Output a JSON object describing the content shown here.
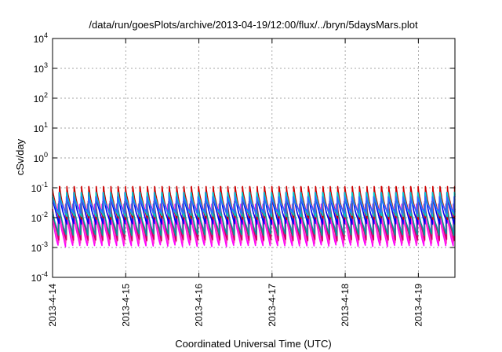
{
  "chart_data": {
    "type": "line",
    "title": "/data/run/goesPlots/archive/2013-04-19/12:00/flux/../bryn/5daysMars.plot",
    "xlabel": "Coordinated Universal Time (UTC)",
    "ylabel": "cSv/day",
    "y_scale": "log",
    "ylim": [
      0.0001,
      10000
    ],
    "y_ticks": [
      {
        "value": 0.0001,
        "base": "10",
        "exp": "-4"
      },
      {
        "value": 0.001,
        "base": "10",
        "exp": "-3"
      },
      {
        "value": 0.01,
        "base": "10",
        "exp": "-2"
      },
      {
        "value": 0.1,
        "base": "10",
        "exp": "-1"
      },
      {
        "value": 1,
        "base": "10",
        "exp": "0"
      },
      {
        "value": 10,
        "base": "10",
        "exp": "1"
      },
      {
        "value": 100,
        "base": "10",
        "exp": "2"
      },
      {
        "value": 1000,
        "base": "10",
        "exp": "3"
      },
      {
        "value": 10000,
        "base": "10",
        "exp": "4"
      }
    ],
    "xlim": [
      "2013-04-14T00:00",
      "2013-04-19T12:00"
    ],
    "x_ticks": [
      "2013-4-14",
      "2013-4-15",
      "2013-4-16",
      "2013-4-17",
      "2013-4-18",
      "2013-4-19"
    ],
    "x_tick_dates": [
      "2013-04-14",
      "2013-04-15",
      "2013-04-16",
      "2013-04-17",
      "2013-04-18",
      "2013-04-19"
    ],
    "grid": true,
    "legend": "none",
    "sawtooth_period_hours": 2.4,
    "series": [
      {
        "color": "#ff00ff",
        "peak": 0.028,
        "trough": 0.0011,
        "phase_hours": 0.55
      },
      {
        "color": "#ff33cc",
        "peak": 0.025,
        "trough": 0.0014,
        "phase_hours": 0.4
      },
      {
        "color": "#cc0066",
        "peak": 0.035,
        "trough": 0.0017,
        "phase_hours": 0.25
      },
      {
        "color": "#009999",
        "peak": 0.03,
        "trough": 0.0026,
        "phase_hours": 0.35
      },
      {
        "color": "#0000ee",
        "peak": 0.07,
        "trough": 0.006,
        "phase_hours": 0.15
      },
      {
        "color": "#cc0000",
        "peak": 0.11,
        "trough": 0.009,
        "phase_hours": 0.05
      },
      {
        "color": "#00cccc",
        "peak": 0.07,
        "trough": 0.011,
        "phase_hours": 0.1
      },
      {
        "color": "#3366ff",
        "peak": 0.05,
        "trough": 0.014,
        "phase_hours": 0.2
      }
    ]
  }
}
